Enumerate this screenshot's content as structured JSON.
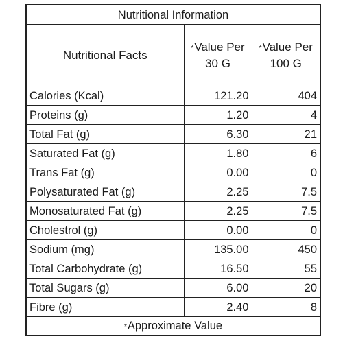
{
  "table": {
    "title": "Nutritional Information",
    "headers": {
      "name": "Nutritional Facts",
      "value_30g": "Value Per 30 G",
      "value_100g": "Value Per 100 G",
      "marker": "*"
    },
    "rows": [
      {
        "name": "Calories (Kcal)",
        "v30": "121.20",
        "v100": "404"
      },
      {
        "name": "Proteins (g)",
        "v30": "1.20",
        "v100": "4"
      },
      {
        "name": "Total Fat (g)",
        "v30": "6.30",
        "v100": "21"
      },
      {
        "name": "Saturated Fat (g)",
        "v30": "1.80",
        "v100": "6"
      },
      {
        "name": "Trans Fat (g)",
        "v30": "0.00",
        "v100": "0"
      },
      {
        "name": "Polysaturated Fat (g)",
        "v30": "2.25",
        "v100": "7.5"
      },
      {
        "name": "Monosaturated Fat (g)",
        "v30": "2.25",
        "v100": "7.5"
      },
      {
        "name": "Cholestrol (g)",
        "v30": "0.00",
        "v100": "0"
      },
      {
        "name": "Sodium  (mg)",
        "v30": "135.00",
        "v100": "450"
      },
      {
        "name": "Total Carbohydrate (g)",
        "v30": "16.50",
        "v100": "55"
      },
      {
        "name": "Total Sugars (g)",
        "v30": "6.00",
        "v100": "20"
      },
      {
        "name": "Fibre (g)",
        "v30": "2.40",
        "v100": "8"
      }
    ],
    "footer": "Approximate Value"
  }
}
